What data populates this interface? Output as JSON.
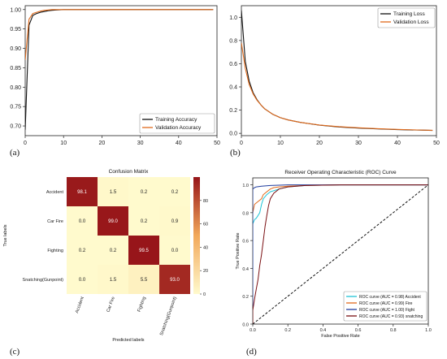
{
  "panel_labels": [
    "(a)",
    "(b)",
    "(c)",
    "(d)"
  ],
  "chart_data": [
    {
      "type": "line",
      "panel": "(a)",
      "xlim": [
        0,
        50
      ],
      "ylim": [
        0.675,
        1.01
      ],
      "xticks": [
        "0",
        "10",
        "20",
        "30",
        "40",
        "50"
      ],
      "yticks": [
        "0.70",
        "0.75",
        "0.80",
        "0.85",
        "0.90",
        "0.95",
        "1.00"
      ],
      "legend_position": "lower-right",
      "series": [
        {
          "name": "Training Accuracy",
          "color": "#111111",
          "x": [
            0,
            1,
            2,
            3,
            4,
            5,
            6,
            7,
            8,
            10,
            15,
            20,
            30,
            40,
            49
          ],
          "y": [
            0.69,
            0.96,
            0.985,
            0.99,
            0.993,
            0.995,
            0.997,
            0.998,
            0.999,
            1.0,
            1.0,
            1.0,
            1.0,
            1.0,
            1.0
          ]
        },
        {
          "name": "Validation Accuracy",
          "color": "#e06a1b",
          "x": [
            0,
            1,
            2,
            3,
            4,
            5,
            6,
            7,
            8,
            10,
            15,
            20,
            30,
            40,
            49
          ],
          "y": [
            0.87,
            0.975,
            0.99,
            0.993,
            0.996,
            0.998,
            0.999,
            1.0,
            1.0,
            1.0,
            1.0,
            1.0,
            1.0,
            1.0,
            1.0
          ]
        }
      ]
    },
    {
      "type": "line",
      "panel": "(b)",
      "xlim": [
        0,
        50
      ],
      "ylim": [
        -0.02,
        1.1
      ],
      "xticks": [
        "0",
        "10",
        "20",
        "30",
        "40",
        "50"
      ],
      "yticks": [
        "0.0",
        "0.2",
        "0.4",
        "0.6",
        "0.8",
        "1.0"
      ],
      "legend_position": "top-right",
      "series": [
        {
          "name": "Training Loss",
          "color": "#111111",
          "x": [
            0,
            1,
            2,
            3,
            4,
            5,
            6,
            8,
            10,
            12,
            15,
            20,
            25,
            30,
            35,
            40,
            45,
            49
          ],
          "y": [
            1.06,
            0.62,
            0.45,
            0.35,
            0.29,
            0.245,
            0.21,
            0.165,
            0.135,
            0.115,
            0.095,
            0.07,
            0.055,
            0.045,
            0.038,
            0.032,
            0.028,
            0.025
          ]
        },
        {
          "name": "Validation Loss",
          "color": "#e06a1b",
          "x": [
            0,
            1,
            2,
            3,
            4,
            5,
            6,
            8,
            10,
            12,
            15,
            20,
            25,
            30,
            35,
            40,
            45,
            49
          ],
          "y": [
            0.78,
            0.56,
            0.42,
            0.34,
            0.285,
            0.245,
            0.21,
            0.165,
            0.135,
            0.115,
            0.095,
            0.072,
            0.058,
            0.048,
            0.04,
            0.034,
            0.029,
            0.026
          ]
        }
      ]
    },
    {
      "type": "heatmap",
      "panel": "(c)",
      "title": "Confusion Matrix",
      "xlabel": "Predicted labels",
      "ylabel": "True labels",
      "labels": [
        "Accident",
        "Car Fire",
        "Fighting",
        "Snatching(Gunpoint)"
      ],
      "values": [
        [
          98.1,
          1.5,
          0.2,
          0.2
        ],
        [
          0.0,
          99.0,
          0.2,
          0.9
        ],
        [
          0.2,
          0.2,
          99.5,
          0.0
        ],
        [
          0.0,
          1.5,
          5.5,
          93.0
        ]
      ],
      "colorbar_ticks": [
        "0",
        "20",
        "40",
        "60",
        "80"
      ],
      "colorbar_range": [
        0,
        100
      ]
    },
    {
      "type": "line",
      "panel": "(d)",
      "title": "Receiver Operating Characteristic (ROC) Curve",
      "xlabel": "False Positive Rate",
      "ylabel": "True Positive Rate",
      "xlim": [
        0,
        1
      ],
      "ylim": [
        0,
        1.05
      ],
      "xticks": [
        "0.0",
        "0.2",
        "0.4",
        "0.6",
        "0.8",
        "1.0"
      ],
      "yticks": [
        "0.0",
        "0.2",
        "0.4",
        "0.6",
        "0.8",
        "1.0"
      ],
      "legend_position": "lower-right",
      "series": [
        {
          "name": "ROC curve (AUC = 0.98) Accident",
          "color": "#1fc4d6",
          "x": [
            0,
            0.0,
            0.01,
            0.02,
            0.03,
            0.04,
            0.05,
            0.06,
            0.08,
            0.1,
            0.15,
            0.2,
            0.3,
            0.5,
            1.0
          ],
          "y": [
            0,
            0.72,
            0.75,
            0.76,
            0.78,
            0.8,
            0.86,
            0.9,
            0.93,
            0.95,
            0.97,
            0.985,
            0.995,
            1.0,
            1.0
          ]
        },
        {
          "name": "ROC curve (AUC = 0.99) Fire",
          "color": "#e06a1b",
          "x": [
            0,
            0.0,
            0.01,
            0.02,
            0.03,
            0.05,
            0.06,
            0.08,
            0.1,
            0.12,
            0.15,
            0.2,
            0.3,
            0.5,
            1.0
          ],
          "y": [
            0,
            0.8,
            0.86,
            0.87,
            0.88,
            0.9,
            0.93,
            0.95,
            0.97,
            0.98,
            0.985,
            0.99,
            0.995,
            1.0,
            1.0
          ]
        },
        {
          "name": "ROC curve (AUC = 1.00) Fight",
          "color": "#1f3c9e",
          "x": [
            0,
            0.0,
            0.01,
            0.02,
            0.05,
            0.1,
            0.2,
            0.4,
            1.0
          ],
          "y": [
            0,
            0.97,
            0.98,
            0.985,
            0.99,
            0.995,
            1.0,
            1.0,
            1.0
          ]
        },
        {
          "name": "ROC curve (AUC = 0.93) snatching",
          "color": "#7a0f12",
          "x": [
            0,
            0.0,
            0.01,
            0.02,
            0.03,
            0.04,
            0.05,
            0.06,
            0.07,
            0.08,
            0.09,
            0.1,
            0.12,
            0.15,
            0.2,
            0.3,
            0.5,
            1.0
          ],
          "y": [
            0,
            0.1,
            0.18,
            0.25,
            0.32,
            0.42,
            0.5,
            0.6,
            0.7,
            0.78,
            0.85,
            0.9,
            0.94,
            0.97,
            0.985,
            0.995,
            1.0,
            1.0
          ]
        },
        {
          "name": "",
          "color": "#111111",
          "dashed": true,
          "x": [
            0,
            1
          ],
          "y": [
            0,
            1
          ]
        }
      ]
    }
  ]
}
